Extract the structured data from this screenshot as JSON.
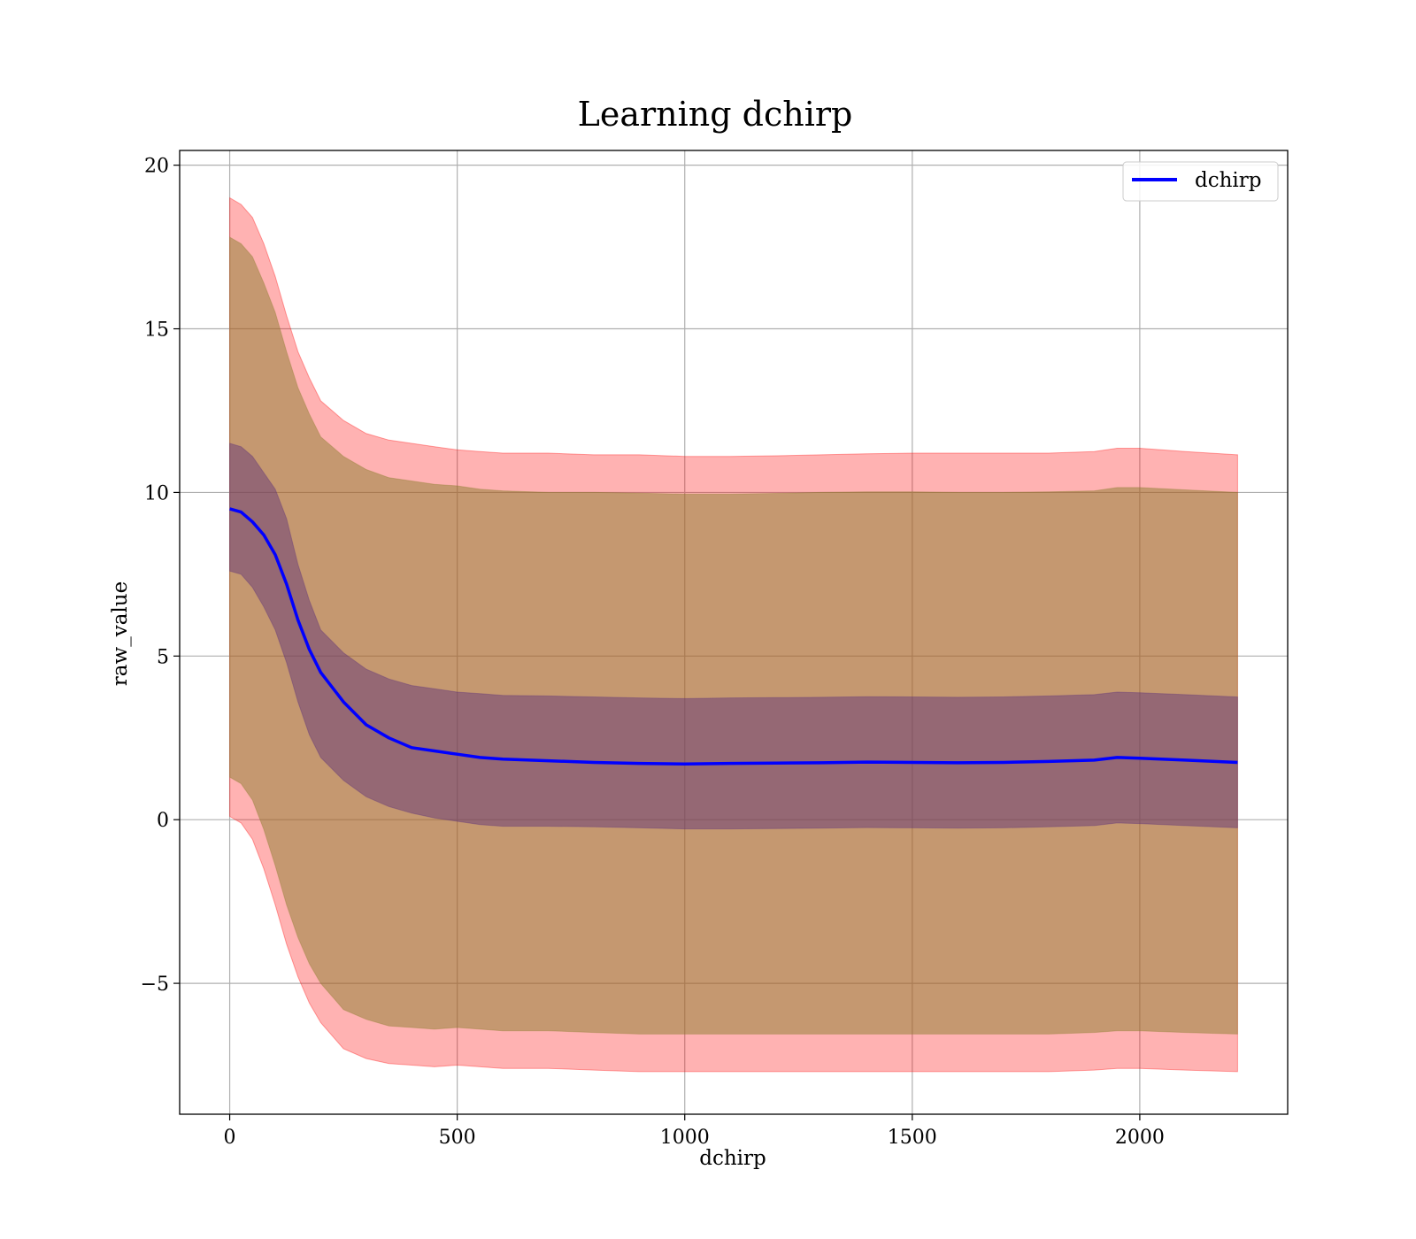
{
  "chart_data": {
    "type": "line",
    "title": "Learning dchirp",
    "xlabel": "dchirp",
    "ylabel": "raw_value",
    "xlim": [
      -110,
      2325
    ],
    "ylim": [
      -9.0,
      20.45
    ],
    "xticks": [
      0,
      500,
      1000,
      1500,
      2000
    ],
    "yticks": [
      -5,
      0,
      5,
      10,
      15,
      20
    ],
    "ytick_labels": [
      "−5",
      "0",
      "5",
      "10",
      "15",
      "20"
    ],
    "grid": true,
    "legend": {
      "position": "top-right",
      "entries": [
        "dchirp"
      ]
    },
    "colors": {
      "line": "#0000ff",
      "band_outer": "#ff0000",
      "band_middle": "#8b7d2e",
      "band_inner": "#5a2e7a"
    },
    "x": [
      0,
      25,
      50,
      75,
      100,
      125,
      150,
      175,
      200,
      250,
      300,
      350,
      400,
      450,
      500,
      550,
      600,
      700,
      800,
      900,
      1000,
      1100,
      1200,
      1300,
      1400,
      1500,
      1600,
      1700,
      1800,
      1900,
      1950,
      2000,
      2100,
      2215
    ],
    "series": [
      {
        "name": "dchirp",
        "values": [
          9.5,
          9.4,
          9.1,
          8.7,
          8.1,
          7.2,
          6.1,
          5.2,
          4.5,
          3.6,
          2.9,
          2.5,
          2.2,
          2.1,
          2.0,
          1.9,
          1.85,
          1.8,
          1.75,
          1.72,
          1.7,
          1.72,
          1.73,
          1.74,
          1.76,
          1.75,
          1.74,
          1.75,
          1.78,
          1.82,
          1.9,
          1.88,
          1.82,
          1.75
        ]
      }
    ],
    "bands": [
      {
        "level": "outer",
        "upper": [
          19.0,
          18.8,
          18.4,
          17.6,
          16.6,
          15.4,
          14.3,
          13.5,
          12.8,
          12.2,
          11.8,
          11.6,
          11.5,
          11.4,
          11.3,
          11.25,
          11.2,
          11.2,
          11.15,
          11.15,
          11.1,
          11.1,
          11.12,
          11.15,
          11.18,
          11.2,
          11.2,
          11.2,
          11.2,
          11.25,
          11.35,
          11.35,
          11.25,
          11.15
        ],
        "lower": [
          0.1,
          -0.1,
          -0.6,
          -1.5,
          -2.6,
          -3.8,
          -4.8,
          -5.6,
          -6.2,
          -7.0,
          -7.3,
          -7.45,
          -7.5,
          -7.55,
          -7.5,
          -7.55,
          -7.6,
          -7.6,
          -7.65,
          -7.7,
          -7.7,
          -7.7,
          -7.7,
          -7.7,
          -7.7,
          -7.7,
          -7.7,
          -7.7,
          -7.7,
          -7.65,
          -7.6,
          -7.6,
          -7.65,
          -7.7
        ]
      },
      {
        "level": "middle",
        "upper": [
          17.8,
          17.6,
          17.2,
          16.4,
          15.5,
          14.3,
          13.2,
          12.4,
          11.7,
          11.1,
          10.7,
          10.45,
          10.35,
          10.25,
          10.2,
          10.1,
          10.05,
          10.0,
          10.0,
          9.98,
          9.95,
          9.95,
          9.97,
          10.0,
          10.02,
          10.02,
          10.0,
          10.0,
          10.02,
          10.05,
          10.15,
          10.15,
          10.08,
          10.0
        ],
        "lower": [
          1.3,
          1.1,
          0.6,
          -0.3,
          -1.4,
          -2.6,
          -3.6,
          -4.4,
          -5.0,
          -5.8,
          -6.1,
          -6.3,
          -6.35,
          -6.4,
          -6.35,
          -6.4,
          -6.45,
          -6.45,
          -6.5,
          -6.55,
          -6.55,
          -6.55,
          -6.55,
          -6.55,
          -6.55,
          -6.55,
          -6.55,
          -6.55,
          -6.55,
          -6.5,
          -6.45,
          -6.45,
          -6.5,
          -6.55
        ]
      },
      {
        "level": "inner",
        "upper": [
          11.5,
          11.4,
          11.1,
          10.6,
          10.1,
          9.2,
          7.8,
          6.7,
          5.8,
          5.1,
          4.6,
          4.3,
          4.1,
          4.0,
          3.9,
          3.85,
          3.8,
          3.78,
          3.75,
          3.72,
          3.7,
          3.72,
          3.73,
          3.74,
          3.76,
          3.75,
          3.74,
          3.75,
          3.78,
          3.82,
          3.9,
          3.88,
          3.82,
          3.75
        ],
        "lower": [
          7.6,
          7.5,
          7.1,
          6.5,
          5.8,
          4.8,
          3.6,
          2.6,
          1.9,
          1.2,
          0.7,
          0.4,
          0.2,
          0.05,
          -0.05,
          -0.15,
          -0.2,
          -0.2,
          -0.22,
          -0.25,
          -0.28,
          -0.28,
          -0.27,
          -0.26,
          -0.24,
          -0.25,
          -0.26,
          -0.25,
          -0.22,
          -0.18,
          -0.1,
          -0.12,
          -0.18,
          -0.25
        ]
      }
    ]
  }
}
